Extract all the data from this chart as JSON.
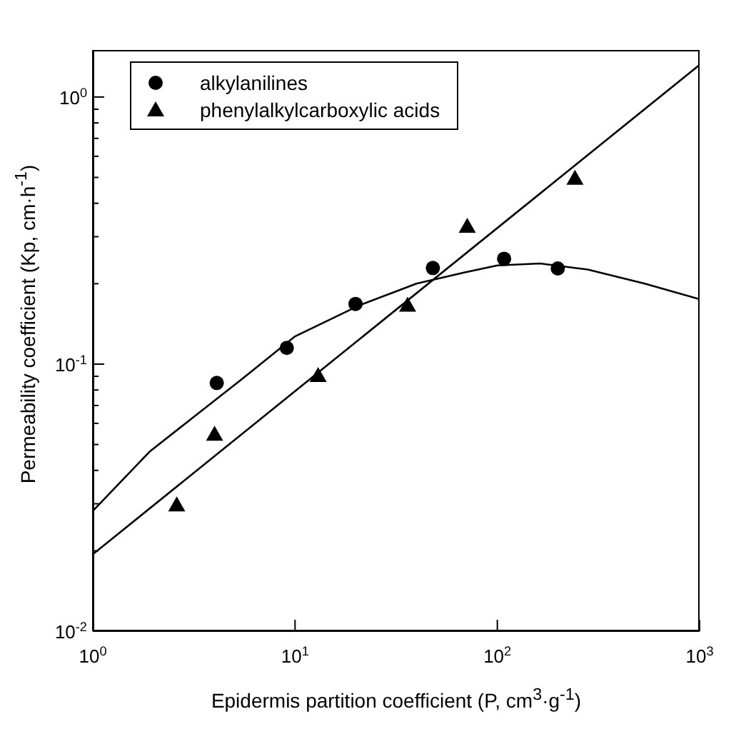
{
  "chart_data": {
    "type": "scatter",
    "xlabel": "Epidermis partition coefficient (P, cm$^{3}$·g$^{-1}$)",
    "ylabel": "Permeability coefficient (Kp, cm·h$^{-1}$)",
    "log": "xy",
    "grid": false,
    "legend": "top left",
    "xlim": [
      1,
      1000
    ],
    "xticks": [
      {
        "value": 1,
        "label": "10$^{0}$"
      },
      {
        "value": 10,
        "label": "10$^{1}$"
      },
      {
        "value": 100,
        "label": "10$^{2}$"
      },
      {
        "value": 1000,
        "label": "10$^{3}$"
      }
    ],
    "ylim": [
      0.01,
      1.5
    ],
    "yticks": [
      {
        "value": 0.01,
        "label": "10$^{-2}$"
      },
      {
        "value": 0.02,
        "label": null
      },
      {
        "value": 0.03,
        "label": null
      },
      {
        "value": 0.04,
        "label": null
      },
      {
        "value": 0.05,
        "label": null
      },
      {
        "value": 0.06,
        "label": null
      },
      {
        "value": 0.07,
        "label": null
      },
      {
        "value": 0.08,
        "label": null
      },
      {
        "value": 0.09,
        "label": null
      },
      {
        "value": 0.1,
        "label": "10$^{-1}$"
      },
      {
        "value": 0.2,
        "label": null
      },
      {
        "value": 0.3,
        "label": null
      },
      {
        "value": 0.4,
        "label": null
      },
      {
        "value": 0.5,
        "label": null
      },
      {
        "value": 0.6,
        "label": null
      },
      {
        "value": 0.7,
        "label": null
      },
      {
        "value": 0.8,
        "label": null
      },
      {
        "value": 0.9,
        "label": null
      },
      {
        "value": 1,
        "label": "10$^{0}$"
      }
    ],
    "series": [
      {
        "name": "alkylanilines",
        "type": "scatter",
        "marker": "circle",
        "color": "#000000",
        "x": [
          4.1,
          9.1,
          19.9,
          48,
          108,
          199
        ],
        "values": [
          0.085,
          0.115,
          0.168,
          0.229,
          0.248,
          0.228
        ]
      },
      {
        "name": "phenylalkylcarboxylic acids",
        "type": "scatter",
        "marker": "triangle",
        "color": "#000000",
        "x": [
          2.6,
          4.0,
          13,
          36,
          71,
          242
        ],
        "values": [
          0.0297,
          0.0546,
          0.0906,
          0.166,
          0.328,
          0.496
        ]
      },
      {
        "type": "line",
        "marker": "none",
        "line_style": "solid",
        "color": "#000000",
        "x": [
          1,
          1.92,
          3.12,
          5.36,
          10,
          20.8,
          39.8,
          68.4,
          100,
          163,
          280,
          536,
          1000
        ],
        "values": [
          0.0282,
          0.0472,
          0.063,
          0.0869,
          0.127,
          0.166,
          0.2,
          0.22,
          0.234,
          0.238,
          0.226,
          0.2,
          0.175
        ]
      },
      {
        "type": "line",
        "marker": "none",
        "line_style": "solid",
        "color": "#000000",
        "x": [
          1,
          1000
        ],
        "values": [
          0.0194,
          1.32
        ]
      }
    ]
  }
}
